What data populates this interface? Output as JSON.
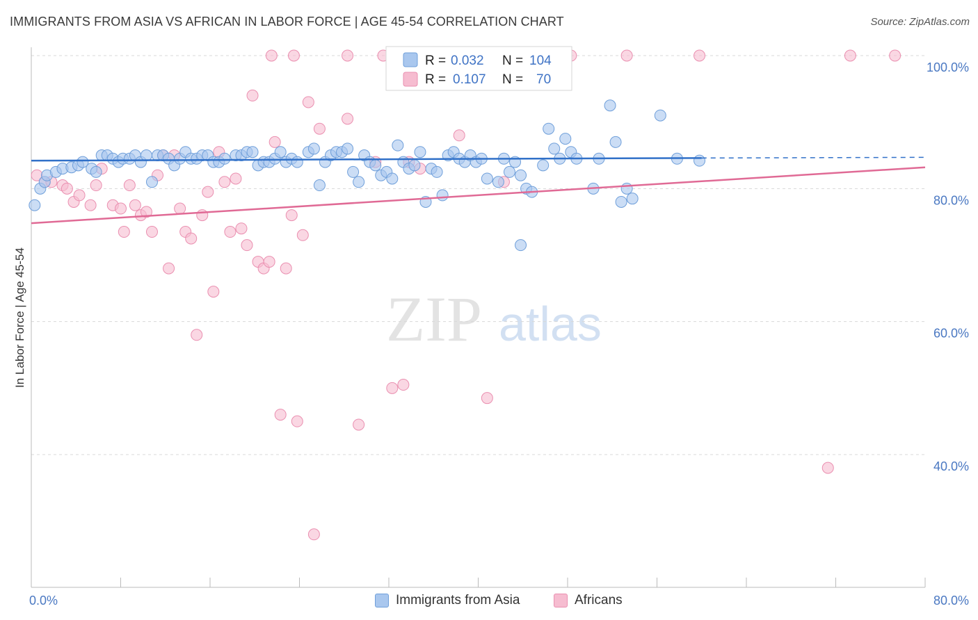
{
  "title": "IMMIGRANTS FROM ASIA VS AFRICAN IN LABOR FORCE | AGE 45-54 CORRELATION CHART",
  "source": "Source: ZipAtlas.com",
  "watermark": {
    "zip": "ZIP",
    "atlas": "atlas"
  },
  "colors": {
    "blue_fill": "#a9c7ee",
    "blue_stroke": "#6f9fda",
    "blue_line": "#3070c8",
    "pink_fill": "#f6bcd0",
    "pink_stroke": "#ea8fb0",
    "pink_line": "#e06a95",
    "tick_label": "#4a78c2",
    "grid": "#d8d8d8"
  },
  "legend": {
    "rows": [
      {
        "r_label": "R =",
        "r_value": "0.032",
        "n_label": "N =",
        "n_value": "104"
      },
      {
        "r_label": "R =",
        "r_value": "0.107",
        "n_label": "N =",
        "n_value": "70"
      }
    ]
  },
  "bottom_legend": [
    "Immigrants from Asia",
    "Africans"
  ],
  "chart_data": {
    "type": "scatter",
    "title": "IMMIGRANTS FROM ASIA VS AFRICAN IN LABOR FORCE | AGE 45-54 CORRELATION CHART",
    "xlabel": "",
    "ylabel": "In Labor Force | Age 45-54",
    "xlim": [
      0,
      80
    ],
    "ylim": [
      22,
      104
    ],
    "x_tick_labels": [
      "0.0%",
      "80.0%"
    ],
    "y_tick_labels": [
      "100.0%",
      "80.0%",
      "60.0%",
      "40.0%"
    ],
    "y_ticks": [
      100,
      80,
      60,
      40
    ],
    "grid": true,
    "legend_position": "top-center",
    "series": [
      {
        "name": "Immigrants from Asia",
        "R": 0.032,
        "N": 104,
        "trend": {
          "x": [
            0,
            60,
            80
          ],
          "y": [
            84.2,
            84.6,
            84.7
          ],
          "solid_until": 60
        },
        "points": [
          [
            0.3,
            77.5
          ],
          [
            0.8,
            80
          ],
          [
            1.2,
            81
          ],
          [
            1.4,
            82
          ],
          [
            2.2,
            82.5
          ],
          [
            2.8,
            83
          ],
          [
            3.6,
            83.2
          ],
          [
            4.2,
            83.5
          ],
          [
            4.6,
            84
          ],
          [
            5.4,
            83
          ],
          [
            5.8,
            82.5
          ],
          [
            6.3,
            85
          ],
          [
            6.8,
            85
          ],
          [
            7.3,
            84.5
          ],
          [
            7.8,
            84
          ],
          [
            8.2,
            84.5
          ],
          [
            8.8,
            84.5
          ],
          [
            9.3,
            85
          ],
          [
            9.8,
            84
          ],
          [
            10.3,
            85
          ],
          [
            10.8,
            81
          ],
          [
            11.3,
            85
          ],
          [
            11.8,
            85
          ],
          [
            12.3,
            84.5
          ],
          [
            12.8,
            83.5
          ],
          [
            13.3,
            84.5
          ],
          [
            13.8,
            85.5
          ],
          [
            14.3,
            84.5
          ],
          [
            14.8,
            84.5
          ],
          [
            15.3,
            85
          ],
          [
            15.8,
            85
          ],
          [
            16.3,
            84
          ],
          [
            16.8,
            84
          ],
          [
            17.3,
            84.5
          ],
          [
            18.3,
            85
          ],
          [
            18.8,
            85
          ],
          [
            19.3,
            85.5
          ],
          [
            19.8,
            85.5
          ],
          [
            20.3,
            83.5
          ],
          [
            20.8,
            84
          ],
          [
            21.3,
            84
          ],
          [
            21.8,
            84.5
          ],
          [
            22.3,
            85.5
          ],
          [
            22.8,
            84
          ],
          [
            23.3,
            84.5
          ],
          [
            23.8,
            84
          ],
          [
            24.8,
            85.5
          ],
          [
            25.3,
            86
          ],
          [
            25.8,
            80.5
          ],
          [
            26.3,
            84
          ],
          [
            26.8,
            85
          ],
          [
            27.3,
            85.5
          ],
          [
            27.8,
            85.5
          ],
          [
            28.3,
            86
          ],
          [
            28.8,
            82.5
          ],
          [
            29.3,
            81
          ],
          [
            29.8,
            85
          ],
          [
            30.3,
            84
          ],
          [
            30.8,
            83.5
          ],
          [
            31.3,
            82
          ],
          [
            31.8,
            82.5
          ],
          [
            32.3,
            81.5
          ],
          [
            32.8,
            86.5
          ],
          [
            33.3,
            84
          ],
          [
            33.8,
            83
          ],
          [
            34.3,
            83.5
          ],
          [
            34.8,
            85.5
          ],
          [
            35.3,
            78
          ],
          [
            35.8,
            83
          ],
          [
            36.3,
            82.5
          ],
          [
            36.8,
            79
          ],
          [
            37.3,
            85
          ],
          [
            37.8,
            85.5
          ],
          [
            38.3,
            84.5
          ],
          [
            38.8,
            84
          ],
          [
            39.3,
            85
          ],
          [
            39.8,
            84
          ],
          [
            40.3,
            84.5
          ],
          [
            40.8,
            81.5
          ],
          [
            41.8,
            81
          ],
          [
            42.3,
            84.5
          ],
          [
            42.8,
            82.5
          ],
          [
            43.3,
            84
          ],
          [
            43.8,
            82
          ],
          [
            43.8,
            71.5
          ],
          [
            44.3,
            80
          ],
          [
            44.8,
            79.5
          ],
          [
            45.8,
            83.5
          ],
          [
            46.3,
            89
          ],
          [
            46.8,
            86
          ],
          [
            47.3,
            84.5
          ],
          [
            47.8,
            87.5
          ],
          [
            48.3,
            85.5
          ],
          [
            48.8,
            84.5
          ],
          [
            50.3,
            80
          ],
          [
            50.8,
            84.5
          ],
          [
            51.8,
            92.5
          ],
          [
            52.3,
            87
          ],
          [
            52.8,
            78
          ],
          [
            53.3,
            80
          ],
          [
            53.8,
            78.5
          ],
          [
            56.3,
            91
          ],
          [
            57.8,
            84.5
          ],
          [
            59.8,
            84.2
          ]
        ]
      },
      {
        "name": "Africans",
        "R": 0.107,
        "N": 70,
        "trend": {
          "x": [
            0,
            80
          ],
          "y": [
            74.8,
            83.2
          ]
        },
        "points": [
          [
            0.5,
            82
          ],
          [
            1.2,
            81
          ],
          [
            1.8,
            81
          ],
          [
            2.8,
            80.5
          ],
          [
            3.2,
            80
          ],
          [
            3.8,
            78
          ],
          [
            4.3,
            79
          ],
          [
            5.3,
            77.5
          ],
          [
            5.8,
            80.5
          ],
          [
            6.3,
            83
          ],
          [
            7.3,
            77.5
          ],
          [
            8.0,
            77
          ],
          [
            8.3,
            73.5
          ],
          [
            8.8,
            80.5
          ],
          [
            9.3,
            77.5
          ],
          [
            9.8,
            76
          ],
          [
            10.3,
            76.5
          ],
          [
            10.8,
            73.5
          ],
          [
            11.3,
            82
          ],
          [
            11.8,
            85
          ],
          [
            12.3,
            68
          ],
          [
            12.8,
            85
          ],
          [
            13.3,
            77
          ],
          [
            13.8,
            73.5
          ],
          [
            14.3,
            72.5
          ],
          [
            14.8,
            58
          ],
          [
            15.3,
            76
          ],
          [
            15.8,
            79.5
          ],
          [
            16.3,
            64.5
          ],
          [
            16.8,
            85.5
          ],
          [
            17.3,
            81
          ],
          [
            17.8,
            73.5
          ],
          [
            18.3,
            81.5
          ],
          [
            18.8,
            74
          ],
          [
            19.3,
            71.5
          ],
          [
            19.8,
            94
          ],
          [
            20.3,
            69
          ],
          [
            20.8,
            68
          ],
          [
            21.3,
            69
          ],
          [
            21.8,
            87
          ],
          [
            22.3,
            46
          ],
          [
            22.8,
            68
          ],
          [
            23.3,
            76
          ],
          [
            23.8,
            45
          ],
          [
            24.3,
            73
          ],
          [
            24.8,
            93
          ],
          [
            25.3,
            28
          ],
          [
            25.8,
            89
          ],
          [
            28.3,
            90.5
          ],
          [
            29.3,
            44.5
          ],
          [
            30.8,
            84
          ],
          [
            32.3,
            50
          ],
          [
            33.3,
            50.5
          ],
          [
            33.8,
            84
          ],
          [
            34.8,
            83
          ],
          [
            38.3,
            88
          ],
          [
            40.8,
            48.5
          ],
          [
            42.3,
            81
          ],
          [
            43.3,
            100
          ],
          [
            48.3,
            100
          ],
          [
            53.3,
            100
          ],
          [
            59.8,
            100
          ],
          [
            73.3,
            100
          ],
          [
            77.3,
            100
          ],
          [
            71.3,
            38
          ],
          [
            21.5,
            100
          ],
          [
            28.3,
            100
          ],
          [
            31.5,
            100
          ],
          [
            23.5,
            100
          ],
          [
            40.3,
            100
          ]
        ]
      }
    ]
  }
}
